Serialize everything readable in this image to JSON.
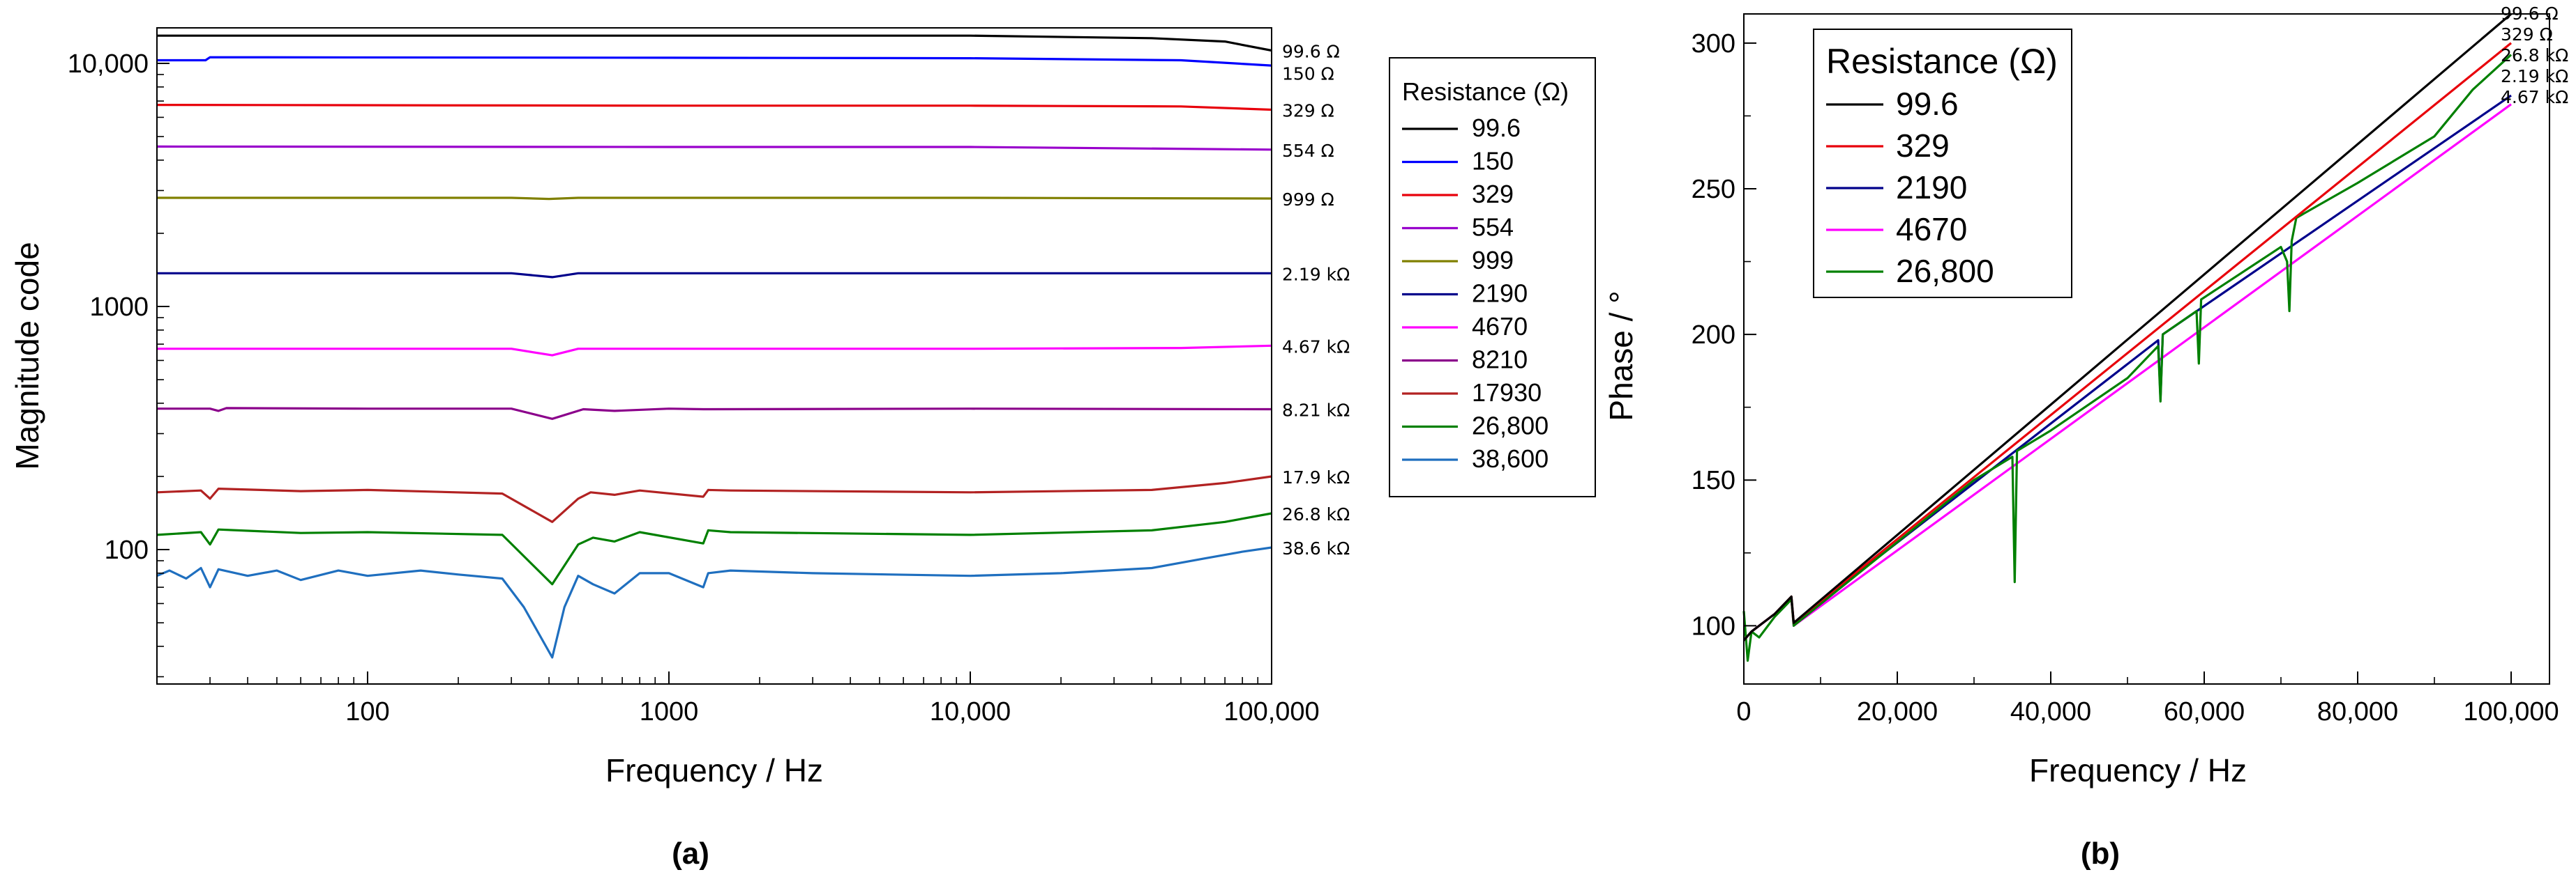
{
  "chart_data": [
    {
      "type": "line",
      "panel_label": "(a)",
      "xlabel": "Frequency / Hz",
      "ylabel": "Magnitude code",
      "xscale": "log",
      "yscale": "log",
      "xlim": [
        20,
        100000
      ],
      "ylim": [
        28,
        14000
      ],
      "xtick_values": [
        100,
        1000,
        10000,
        100000
      ],
      "xtick_labels": [
        "100",
        "1000",
        "10,000",
        "100,000"
      ],
      "ytick_values": [
        100,
        1000,
        10000
      ],
      "ytick_labels": [
        "100",
        "1000",
        "10,000"
      ],
      "legend": {
        "title": "Resistance (Ω)",
        "placement": "right-outside",
        "entries": [
          "99.6",
          "150",
          "329",
          "554",
          "999",
          "2190",
          "4670",
          "8210",
          "17930",
          "26,800",
          "38,600"
        ]
      },
      "series": [
        {
          "name": "99.6",
          "color": "#000000",
          "end_label": "99.6 Ω",
          "x": [
            20,
            1000,
            10000,
            40000,
            70000,
            100000
          ],
          "y": [
            13000,
            13000,
            13000,
            12700,
            12300,
            11300
          ]
        },
        {
          "name": "150",
          "color": "#0000ff",
          "end_label": "150 Ω",
          "x": [
            20,
            29,
            30,
            1000,
            10000,
            50000,
            100000
          ],
          "y": [
            10300,
            10300,
            10600,
            10550,
            10500,
            10300,
            9800
          ]
        },
        {
          "name": "329",
          "color": "#e8000b",
          "end_label": "329 Ω",
          "x": [
            20,
            1000,
            10000,
            50000,
            100000
          ],
          "y": [
            6750,
            6700,
            6700,
            6650,
            6450
          ]
        },
        {
          "name": "554",
          "color": "#9900cc",
          "end_label": "554 Ω",
          "x": [
            20,
            1000,
            10000,
            100000
          ],
          "y": [
            4550,
            4530,
            4530,
            4420
          ]
        },
        {
          "name": "999",
          "color": "#808000",
          "end_label": "999 Ω",
          "x": [
            20,
            300,
            400,
            500,
            1000,
            10000,
            100000
          ],
          "y": [
            2800,
            2800,
            2770,
            2800,
            2800,
            2800,
            2780
          ]
        },
        {
          "name": "2190",
          "color": "#00008b",
          "end_label": "2.19 kΩ",
          "x": [
            20,
            300,
            410,
            500,
            1000,
            10000,
            100000
          ],
          "y": [
            1370,
            1370,
            1320,
            1370,
            1370,
            1370,
            1370
          ]
        },
        {
          "name": "4670",
          "color": "#ff00ff",
          "end_label": "4.67 kΩ",
          "x": [
            20,
            300,
            410,
            500,
            1000,
            10000,
            50000,
            100000
          ],
          "y": [
            670,
            670,
            630,
            670,
            670,
            670,
            675,
            690
          ]
        },
        {
          "name": "8210",
          "color": "#8b008b",
          "end_label": "8.21 kΩ",
          "x": [
            20,
            30,
            32,
            34,
            100,
            300,
            410,
            520,
            660,
            1000,
            1300,
            10000,
            100000
          ],
          "y": [
            380,
            380,
            372,
            382,
            380,
            380,
            345,
            378,
            372,
            380,
            378,
            380,
            378
          ]
        },
        {
          "name": "17930",
          "color": "#b22222",
          "end_label": "17.9 kΩ",
          "x": [
            20,
            28,
            30,
            32,
            60,
            100,
            280,
            410,
            500,
            550,
            660,
            800,
            1300,
            1350,
            1600,
            10000,
            40000,
            70000,
            100000
          ],
          "y": [
            172,
            175,
            162,
            178,
            174,
            176,
            170,
            130,
            162,
            172,
            168,
            175,
            165,
            176,
            175,
            172,
            176,
            188,
            200
          ]
        },
        {
          "name": "26,800",
          "color": "#008000",
          "end_label": "26.8 kΩ",
          "x": [
            20,
            28,
            30,
            32,
            60,
            100,
            280,
            410,
            500,
            560,
            660,
            800,
            1300,
            1350,
            1600,
            10000,
            40000,
            70000,
            100000
          ],
          "y": [
            115,
            118,
            105,
            121,
            117,
            118,
            115,
            72,
            105,
            112,
            108,
            118,
            106,
            120,
            118,
            115,
            120,
            130,
            141
          ]
        },
        {
          "name": "38,600",
          "color": "#1f6fbf",
          "end_label": "38.6 kΩ",
          "x": [
            20,
            22,
            25,
            28,
            30,
            32,
            40,
            50,
            60,
            80,
            100,
            150,
            200,
            280,
            330,
            410,
            450,
            500,
            560,
            660,
            800,
            1000,
            1300,
            1350,
            1600,
            3000,
            10000,
            20000,
            40000,
            60000,
            80000,
            100000
          ],
          "y": [
            78,
            82,
            76,
            84,
            70,
            83,
            78,
            82,
            75,
            82,
            78,
            82,
            79,
            76,
            58,
            36,
            58,
            78,
            72,
            66,
            80,
            80,
            70,
            80,
            82,
            80,
            78,
            80,
            84,
            92,
            98,
            102
          ]
        }
      ]
    },
    {
      "type": "line",
      "panel_label": "(b)",
      "xlabel": "Frequency / Hz",
      "ylabel": "Phase / °",
      "xlim": [
        0,
        105000
      ],
      "ylim": [
        80,
        310
      ],
      "xtick_values": [
        0,
        20000,
        40000,
        60000,
        80000,
        100000
      ],
      "xtick_labels": [
        "0",
        "20,000",
        "40,000",
        "60,000",
        "80,000",
        "100,000"
      ],
      "ytick_values": [
        100,
        150,
        200,
        250,
        300
      ],
      "ytick_labels": [
        "100",
        "150",
        "200",
        "250",
        "300"
      ],
      "legend": {
        "title": "Resistance (Ω)",
        "placement": "top-left",
        "entries": [
          "99.6",
          "329",
          "2190",
          "4670",
          "26,800"
        ]
      },
      "series": [
        {
          "name": "99.6",
          "color": "#000000",
          "end_label": "99.6 Ω",
          "x": [
            0,
            1000,
            4000,
            6200,
            6500,
            100000
          ],
          "y": [
            95,
            98,
            104,
            110,
            101,
            310
          ]
        },
        {
          "name": "329",
          "color": "#e8000b",
          "end_label": "329 Ω",
          "x": [
            0,
            1000,
            4000,
            6200,
            6500,
            100000
          ],
          "y": [
            95,
            98,
            104,
            110,
            101,
            300
          ]
        },
        {
          "name": "2190",
          "color": "#00008b",
          "end_label": "2.19 kΩ",
          "x": [
            0,
            1000,
            4000,
            6200,
            6500,
            54000,
            54300,
            54600,
            100000
          ],
          "y": [
            95,
            98,
            104,
            109,
            101,
            198,
            178,
            200,
            282
          ]
        },
        {
          "name": "4670",
          "color": "#ff00ff",
          "end_label": "4.67 kΩ",
          "x": [
            0,
            1000,
            4000,
            6200,
            6500,
            100000
          ],
          "y": [
            95,
            98,
            104,
            109,
            100,
            279
          ]
        },
        {
          "name": "26,800",
          "color": "#008000",
          "end_label": "26.8 kΩ",
          "x": [
            0,
            500,
            1000,
            2000,
            4000,
            6200,
            6500,
            30000,
            35000,
            35300,
            35600,
            40000,
            50000,
            54000,
            54300,
            54600,
            59000,
            59300,
            59600,
            70000,
            70800,
            71100,
            71400,
            72000,
            80000,
            90000,
            95000,
            100000
          ],
          "y": [
            105,
            88,
            98,
            96,
            103,
            109,
            100,
            150,
            158,
            115,
            160,
            167,
            185,
            196,
            177,
            200,
            208,
            190,
            212,
            230,
            225,
            208,
            232,
            240,
            252,
            268,
            284,
            296
          ]
        }
      ]
    }
  ]
}
